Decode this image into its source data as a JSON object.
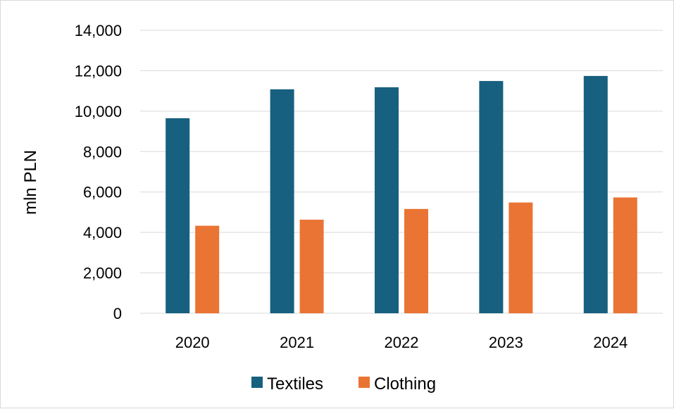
{
  "chart_data": {
    "type": "bar",
    "title": "",
    "xlabel": "",
    "ylabel": "mln PLN",
    "categories": [
      "2020",
      "2021",
      "2022",
      "2023",
      "2024"
    ],
    "series": [
      {
        "name": "Textiles",
        "color": "#17607f",
        "values": [
          9650,
          11080,
          11180,
          11490,
          11740
        ]
      },
      {
        "name": "Clothing",
        "color": "#ea7434",
        "values": [
          4330,
          4630,
          5160,
          5480,
          5730
        ]
      }
    ],
    "ylim": [
      0,
      14000
    ],
    "yticks": [
      "0",
      "2,000",
      "4,000",
      "6,000",
      "8,000",
      "10,000",
      "12,000",
      "14,000"
    ],
    "grid": true,
    "legend_position": "bottom"
  }
}
